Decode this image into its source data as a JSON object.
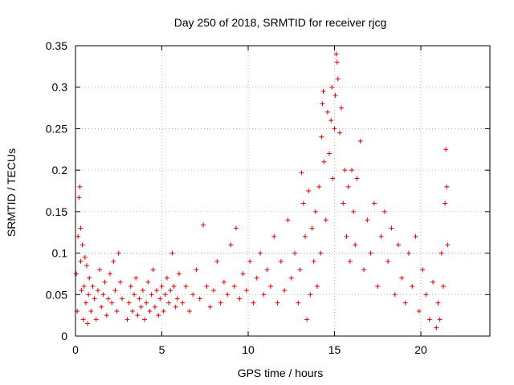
{
  "chart_data": {
    "type": "scatter",
    "title": "Day 250 of 2018, SRMTID for receiver rjcg",
    "xlabel": "GPS time / hours",
    "ylabel": "SRMTID / TECUs",
    "xlim": [
      0,
      24
    ],
    "ylim": [
      0,
      0.35
    ],
    "xticks": [
      0,
      5,
      10,
      15,
      20
    ],
    "xtick_labels": [
      "0",
      "5",
      "10",
      "15",
      "20"
    ],
    "yticks": [
      0,
      0.05,
      0.1,
      0.15,
      0.2,
      0.25,
      0.3,
      0.35
    ],
    "ytick_labels": [
      "0",
      "0.05",
      "0.1",
      "0.15",
      "0.2",
      "0.25",
      "0.3",
      "0.35"
    ],
    "grid": true,
    "marker": "plus",
    "color": "#e00000",
    "series": [
      {
        "name": "SRMTID",
        "points": [
          [
            0.05,
            0.075
          ],
          [
            0.1,
            0.03
          ],
          [
            0.15,
            0.12
          ],
          [
            0.2,
            0.167
          ],
          [
            0.25,
            0.18
          ],
          [
            0.3,
            0.13
          ],
          [
            0.3,
            0.09
          ],
          [
            0.35,
            0.055
          ],
          [
            0.4,
            0.11
          ],
          [
            0.45,
            0.02
          ],
          [
            0.5,
            0.06
          ],
          [
            0.55,
            0.095
          ],
          [
            0.6,
            0.04
          ],
          [
            0.65,
            0.085
          ],
          [
            0.7,
            0.015
          ],
          [
            0.75,
            0.05
          ],
          [
            0.8,
            0.07
          ],
          [
            0.9,
            0.03
          ],
          [
            1.0,
            0.06
          ],
          [
            1.1,
            0.045
          ],
          [
            1.2,
            0.02
          ],
          [
            1.3,
            0.055
          ],
          [
            1.4,
            0.08
          ],
          [
            1.5,
            0.035
          ],
          [
            1.6,
            0.05
          ],
          [
            1.7,
            0.065
          ],
          [
            1.8,
            0.025
          ],
          [
            1.9,
            0.045
          ],
          [
            2.0,
            0.075
          ],
          [
            2.1,
            0.04
          ],
          [
            2.2,
            0.09
          ],
          [
            2.3,
            0.055
          ],
          [
            2.4,
            0.03
          ],
          [
            2.5,
            0.1
          ],
          [
            2.6,
            0.065
          ],
          [
            2.7,
            0.045
          ],
          [
            3.0,
            0.02
          ],
          [
            3.1,
            0.04
          ],
          [
            3.2,
            0.06
          ],
          [
            3.3,
            0.03
          ],
          [
            3.4,
            0.05
          ],
          [
            3.5,
            0.07
          ],
          [
            3.6,
            0.025
          ],
          [
            3.7,
            0.045
          ],
          [
            3.8,
            0.035
          ],
          [
            3.9,
            0.055
          ],
          [
            4.0,
            0.02
          ],
          [
            4.1,
            0.04
          ],
          [
            4.2,
            0.065
          ],
          [
            4.3,
            0.03
          ],
          [
            4.4,
            0.05
          ],
          [
            4.5,
            0.08
          ],
          [
            4.6,
            0.035
          ],
          [
            4.7,
            0.055
          ],
          [
            4.8,
            0.025
          ],
          [
            4.9,
            0.045
          ],
          [
            5.0,
            0.06
          ],
          [
            5.1,
            0.03
          ],
          [
            5.2,
            0.05
          ],
          [
            5.3,
            0.07
          ],
          [
            5.4,
            0.04
          ],
          [
            5.5,
            0.055
          ],
          [
            5.6,
            0.1
          ],
          [
            5.7,
            0.06
          ],
          [
            5.8,
            0.035
          ],
          [
            5.9,
            0.045
          ],
          [
            6.0,
            0.075
          ],
          [
            6.2,
            0.04
          ],
          [
            6.4,
            0.06
          ],
          [
            6.6,
            0.03
          ],
          [
            6.8,
            0.05
          ],
          [
            7.0,
            0.08
          ],
          [
            7.2,
            0.045
          ],
          [
            7.4,
            0.134
          ],
          [
            7.6,
            0.06
          ],
          [
            7.8,
            0.035
          ],
          [
            8.0,
            0.055
          ],
          [
            8.2,
            0.09
          ],
          [
            8.4,
            0.04
          ],
          [
            8.6,
            0.065
          ],
          [
            8.8,
            0.05
          ],
          [
            9.0,
            0.11
          ],
          [
            9.2,
            0.06
          ],
          [
            9.3,
            0.13
          ],
          [
            9.5,
            0.045
          ],
          [
            9.7,
            0.075
          ],
          [
            9.9,
            0.055
          ],
          [
            10.1,
            0.09
          ],
          [
            10.3,
            0.04
          ],
          [
            10.5,
            0.07
          ],
          [
            10.7,
            0.1
          ],
          [
            10.9,
            0.05
          ],
          [
            11.1,
            0.08
          ],
          [
            11.3,
            0.06
          ],
          [
            11.5,
            0.12
          ],
          [
            11.7,
            0.04
          ],
          [
            11.9,
            0.09
          ],
          [
            12.1,
            0.055
          ],
          [
            12.3,
            0.14
          ],
          [
            12.5,
            0.07
          ],
          [
            12.7,
            0.1
          ],
          [
            12.9,
            0.04
          ],
          [
            13.0,
            0.08
          ],
          [
            13.1,
            0.197
          ],
          [
            13.2,
            0.16
          ],
          [
            13.3,
            0.12
          ],
          [
            13.4,
            0.02
          ],
          [
            13.5,
            0.175
          ],
          [
            13.6,
            0.05
          ],
          [
            13.7,
            0.13
          ],
          [
            13.8,
            0.09
          ],
          [
            13.9,
            0.15
          ],
          [
            14.0,
            0.06
          ],
          [
            14.1,
            0.18
          ],
          [
            14.2,
            0.1
          ],
          [
            14.25,
            0.24
          ],
          [
            14.3,
            0.28
          ],
          [
            14.35,
            0.295
          ],
          [
            14.4,
            0.21
          ],
          [
            14.5,
            0.14
          ],
          [
            14.6,
            0.27
          ],
          [
            14.7,
            0.22
          ],
          [
            14.8,
            0.26
          ],
          [
            14.85,
            0.3
          ],
          [
            14.9,
            0.19
          ],
          [
            15.0,
            0.25
          ],
          [
            15.05,
            0.29
          ],
          [
            15.1,
            0.34
          ],
          [
            15.15,
            0.33
          ],
          [
            15.2,
            0.31
          ],
          [
            15.3,
            0.245
          ],
          [
            15.4,
            0.275
          ],
          [
            15.5,
            0.16
          ],
          [
            15.6,
            0.2
          ],
          [
            15.7,
            0.12
          ],
          [
            15.8,
            0.18
          ],
          [
            15.9,
            0.09
          ],
          [
            16.0,
            0.2
          ],
          [
            16.1,
            0.15
          ],
          [
            16.2,
            0.11
          ],
          [
            16.3,
            0.19
          ],
          [
            16.5,
            0.235
          ],
          [
            16.7,
            0.08
          ],
          [
            16.9,
            0.14
          ],
          [
            17.1,
            0.1
          ],
          [
            17.3,
            0.16
          ],
          [
            17.5,
            0.06
          ],
          [
            17.7,
            0.12
          ],
          [
            17.9,
            0.15
          ],
          [
            18.1,
            0.09
          ],
          [
            18.3,
            0.13
          ],
          [
            18.5,
            0.05
          ],
          [
            18.7,
            0.11
          ],
          [
            18.9,
            0.07
          ],
          [
            19.1,
            0.04
          ],
          [
            19.3,
            0.1
          ],
          [
            19.5,
            0.06
          ],
          [
            19.7,
            0.12
          ],
          [
            19.9,
            0.03
          ],
          [
            20.1,
            0.08
          ],
          [
            20.3,
            0.05
          ],
          [
            20.5,
            0.02
          ],
          [
            20.7,
            0.065
          ],
          [
            20.9,
            0.01
          ],
          [
            21.0,
            0.04
          ],
          [
            21.1,
            0.02
          ],
          [
            21.2,
            0.1
          ],
          [
            21.3,
            0.06
          ],
          [
            21.4,
            0.16
          ],
          [
            21.45,
            0.225
          ],
          [
            21.5,
            0.18
          ],
          [
            21.55,
            0.11
          ]
        ]
      }
    ]
  }
}
